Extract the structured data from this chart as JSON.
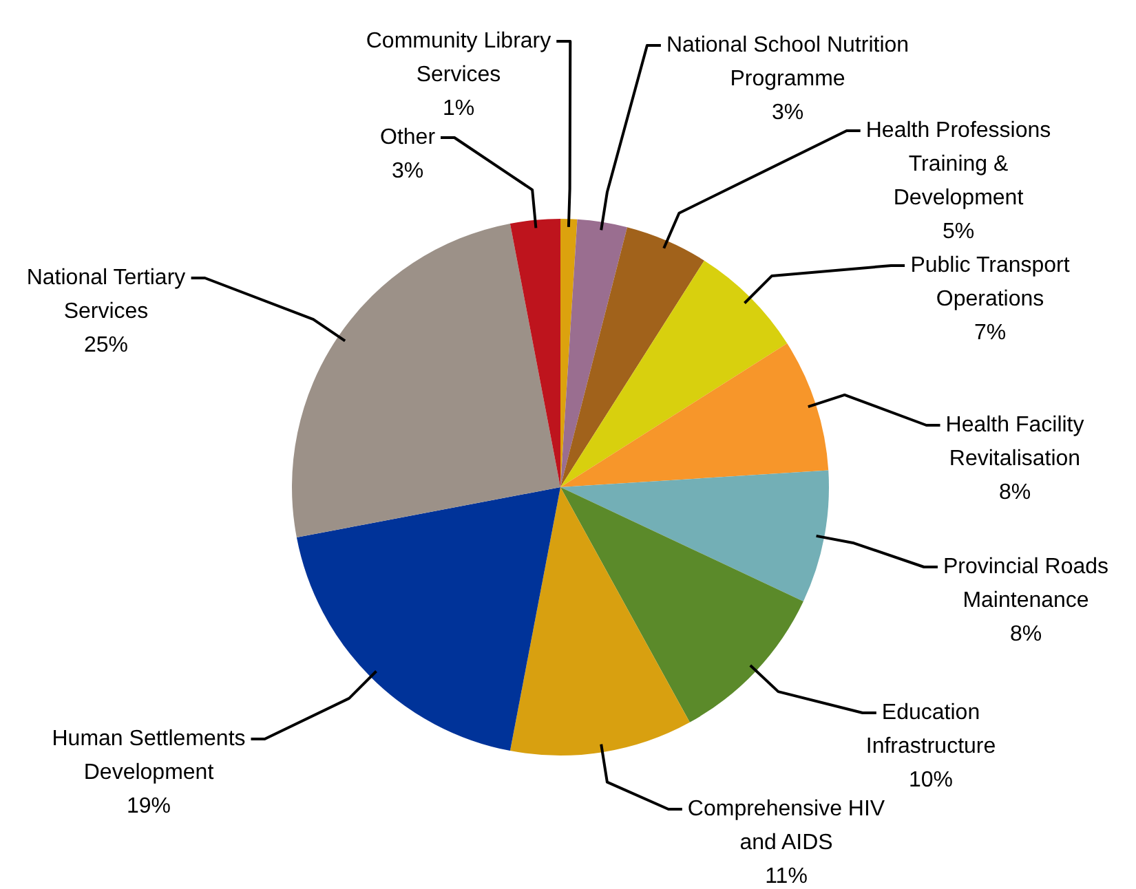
{
  "chart_data": {
    "type": "pie",
    "categories": [
      "Community Library Services",
      "National School Nutrition Programme",
      "Health Professions Training & Development",
      "Public Transport Operations",
      "Health Facility Revitalisation",
      "Provincial Roads Maintenance",
      "Education Infrastructure",
      "Comprehensive HIV and AIDS",
      "Human Settlements Development",
      "National Tertiary Services",
      "Other"
    ],
    "values": [
      1,
      3,
      5,
      7,
      8,
      8,
      10,
      11,
      19,
      25,
      3
    ],
    "value_labels": [
      "1%",
      "3%",
      "5%",
      "7%",
      "8%",
      "8%",
      "10%",
      "11%",
      "19%",
      "25%",
      "3%"
    ],
    "colors": [
      "#dca20e",
      "#9a6e90",
      "#a1621b",
      "#d8d00e",
      "#f7962a",
      "#73afb6",
      "#5b8a2a",
      "#d8a010",
      "#003399",
      "#9c9188",
      "#be141d"
    ],
    "legend": false
  }
}
